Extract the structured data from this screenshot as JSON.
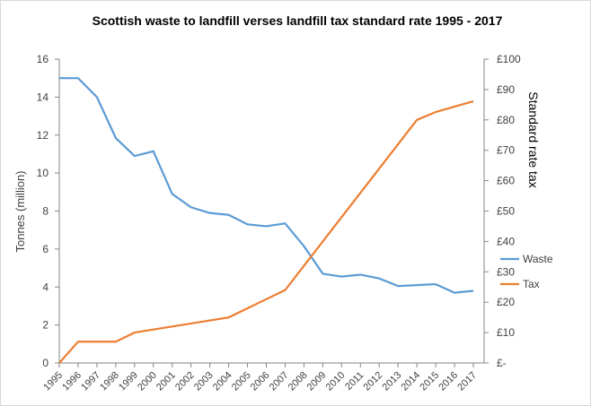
{
  "chart_data": {
    "type": "line",
    "title": "Scottish waste to landfill verses landfill tax standard rate 1995  - 2017",
    "ylabel": "Tonnes (million)",
    "y2label": "Standard rate tax",
    "ylim": [
      0,
      16
    ],
    "y2lim": [
      0,
      100
    ],
    "yticks": [
      "0",
      "2",
      "4",
      "6",
      "8",
      "10",
      "12",
      "14",
      "16"
    ],
    "y2ticks": [
      "£-",
      "£10",
      "£20",
      "£30",
      "£40",
      "£50",
      "£60",
      "£70",
      "£80",
      "£90",
      "£100"
    ],
    "x": [
      "1995",
      "1996",
      "1997",
      "1998",
      "1999",
      "2000",
      "2001",
      "2002",
      "2003",
      "2004",
      "2005",
      "2006",
      "2007",
      "2008",
      "2009",
      "2010",
      "2011",
      "2012",
      "2013",
      "2014",
      "2015",
      "2016",
      "2017"
    ],
    "grid": false,
    "legend": "right",
    "series": [
      {
        "name": "Waste",
        "axis": "left",
        "color": "#5b9bd5",
        "values": [
          15,
          15,
          14,
          11.85,
          10.9,
          11.15,
          8.9,
          8.2,
          7.9,
          7.8,
          7.3,
          7.2,
          7.35,
          6.15,
          4.7,
          4.55,
          4.65,
          4.45,
          4.05,
          4.1,
          4.15,
          3.7,
          3.8
        ]
      },
      {
        "name": "Tax",
        "axis": "right",
        "color": "#ed7d31",
        "values": [
          0,
          7,
          7,
          7,
          10,
          11,
          12,
          13,
          14,
          15,
          18,
          21,
          24,
          32,
          40,
          48,
          56,
          64,
          72,
          80,
          82.6,
          84.4,
          86.1
        ]
      }
    ]
  }
}
